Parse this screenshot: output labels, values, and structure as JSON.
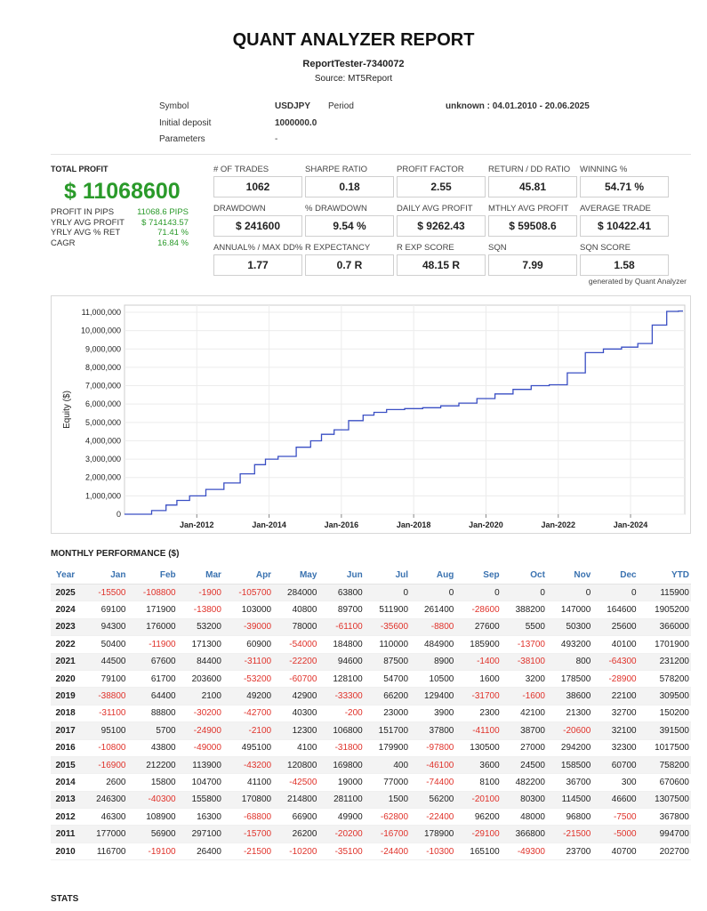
{
  "header": {
    "title": "QUANT ANALYZER REPORT",
    "subtitle": "ReportTester-7340072",
    "source": "Source: MT5Report"
  },
  "info": {
    "symbol_label": "Symbol",
    "symbol_value": "USDJPY",
    "period_label": "Period",
    "period_value": "unknown : 04.01.2010 - 20.06.2025",
    "deposit_label": "Initial deposit",
    "deposit_value": "1000000.0",
    "params_label": "Parameters",
    "params_value": "-"
  },
  "total_profit": {
    "label": "TOTAL PROFIT",
    "value": "$ 11068600",
    "stats": [
      {
        "label": "PROFIT IN PIPS",
        "value": "11068.6 PIPS"
      },
      {
        "label": "YRLY AVG PROFIT",
        "value": "$ 714143.57"
      },
      {
        "label": "YRLY AVG % RET",
        "value": "71.41 %"
      },
      {
        "label": "CAGR",
        "value": "16.84 %"
      }
    ]
  },
  "metrics": [
    {
      "label": "# OF TRADES",
      "value": "1062"
    },
    {
      "label": "SHARPE RATIO",
      "value": "0.18"
    },
    {
      "label": "PROFIT FACTOR",
      "value": "2.55"
    },
    {
      "label": "RETURN / DD RATIO",
      "value": "45.81"
    },
    {
      "label": "WINNING %",
      "value": "54.71 %"
    },
    {
      "label": "DRAWDOWN",
      "value": "$ 241600"
    },
    {
      "label": "% DRAWDOWN",
      "value": "9.54 %"
    },
    {
      "label": "DAILY AVG PROFIT",
      "value": "$ 9262.43"
    },
    {
      "label": "MTHLY AVG PROFIT",
      "value": "$ 59508.6"
    },
    {
      "label": "AVERAGE TRADE",
      "value": "$ 10422.41"
    },
    {
      "label": "ANNUAL% / MAX DD%",
      "value": "1.77"
    },
    {
      "label": "R EXPECTANCY",
      "value": "0.7 R"
    },
    {
      "label": "R EXP SCORE",
      "value": "48.15 R"
    },
    {
      "label": "SQN",
      "value": "7.99"
    },
    {
      "label": "SQN SCORE",
      "value": "1.58"
    }
  ],
  "generated": "generated by Quant Analyzer",
  "chart_data": {
    "type": "line",
    "title": "",
    "xlabel": "",
    "ylabel": "Equity ($)",
    "x_ticks": [
      "Jan-2012",
      "Jan-2014",
      "Jan-2016",
      "Jan-2018",
      "Jan-2020",
      "Jan-2022",
      "Jan-2024"
    ],
    "y_ticks": [
      "0",
      "1,000,000",
      "2,000,000",
      "3,000,000",
      "4,000,000",
      "5,000,000",
      "6,000,000",
      "7,000,000",
      "8,000,000",
      "9,000,000",
      "10,000,000",
      "11,000,000"
    ],
    "ylim": [
      0,
      11000000
    ],
    "xlim": [
      2010.0,
      2025.5
    ],
    "grid": true,
    "series": [
      {
        "x": [
          2010.0,
          2010.5,
          2011.0,
          2011.3,
          2011.6,
          2012.0,
          2012.5,
          2013.0,
          2013.4,
          2013.8,
          2014.0,
          2014.5,
          2015.0,
          2015.3,
          2015.6,
          2016.0,
          2016.4,
          2016.8,
          2017.0,
          2017.5,
          2018.0,
          2018.5,
          2019.0,
          2019.5,
          2020.0,
          2020.5,
          2021.0,
          2021.5,
          2022.0,
          2022.5,
          2023.0,
          2023.5,
          2024.0,
          2024.4,
          2024.8,
          2025.2,
          2025.45
        ],
        "y": [
          0,
          0,
          200000,
          500000,
          750000,
          1000000,
          1350000,
          1700000,
          2200000,
          2700000,
          3000000,
          3150000,
          3650000,
          4000000,
          4350000,
          4600000,
          5100000,
          5400000,
          5550000,
          5700000,
          5750000,
          5800000,
          5900000,
          6050000,
          6300000,
          6550000,
          6800000,
          7000000,
          7050000,
          7700000,
          8800000,
          9000000,
          9100000,
          9300000,
          10300000,
          11050000,
          11068600
        ]
      }
    ]
  },
  "monthly": {
    "title": "MONTHLY PERFORMANCE ($)",
    "columns": [
      "Year",
      "Jan",
      "Feb",
      "Mar",
      "Apr",
      "May",
      "Jun",
      "Jul",
      "Aug",
      "Sep",
      "Oct",
      "Nov",
      "Dec",
      "YTD"
    ],
    "rows": [
      [
        "2025",
        "-15500",
        "-108800",
        "-1900",
        "-105700",
        "284000",
        "63800",
        "0",
        "0",
        "0",
        "0",
        "0",
        "0",
        "115900"
      ],
      [
        "2024",
        "69100",
        "171900",
        "-13800",
        "103000",
        "40800",
        "89700",
        "511900",
        "261400",
        "-28600",
        "388200",
        "147000",
        "164600",
        "1905200"
      ],
      [
        "2023",
        "94300",
        "176000",
        "53200",
        "-39000",
        "78000",
        "-61100",
        "-35600",
        "-8800",
        "27600",
        "5500",
        "50300",
        "25600",
        "366000"
      ],
      [
        "2022",
        "50400",
        "-11900",
        "171300",
        "60900",
        "-54000",
        "184800",
        "110000",
        "484900",
        "185900",
        "-13700",
        "493200",
        "40100",
        "1701900"
      ],
      [
        "2021",
        "44500",
        "67600",
        "84400",
        "-31100",
        "-22200",
        "94600",
        "87500",
        "8900",
        "-1400",
        "-38100",
        "800",
        "-64300",
        "231200"
      ],
      [
        "2020",
        "79100",
        "61700",
        "203600",
        "-53200",
        "-60700",
        "128100",
        "54700",
        "10500",
        "1600",
        "3200",
        "178500",
        "-28900",
        "578200"
      ],
      [
        "2019",
        "-38800",
        "64400",
        "2100",
        "49200",
        "42900",
        "-33300",
        "66200",
        "129400",
        "-31700",
        "-1600",
        "38600",
        "22100",
        "309500"
      ],
      [
        "2018",
        "-31100",
        "88800",
        "-30200",
        "-42700",
        "40300",
        "-200",
        "23000",
        "3900",
        "2300",
        "42100",
        "21300",
        "32700",
        "150200"
      ],
      [
        "2017",
        "95100",
        "5700",
        "-24900",
        "-2100",
        "12300",
        "106800",
        "151700",
        "37800",
        "-41100",
        "38700",
        "-20600",
        "32100",
        "391500"
      ],
      [
        "2016",
        "-10800",
        "43800",
        "-49000",
        "495100",
        "4100",
        "-31800",
        "179900",
        "-97800",
        "130500",
        "27000",
        "294200",
        "32300",
        "1017500"
      ],
      [
        "2015",
        "-16900",
        "212200",
        "113900",
        "-43200",
        "120800",
        "169800",
        "400",
        "-46100",
        "3600",
        "24500",
        "158500",
        "60700",
        "758200"
      ],
      [
        "2014",
        "2600",
        "15800",
        "104700",
        "41100",
        "-42500",
        "19000",
        "77000",
        "-74400",
        "8100",
        "482200",
        "36700",
        "300",
        "670600"
      ],
      [
        "2013",
        "246300",
        "-40300",
        "155800",
        "170800",
        "214800",
        "281100",
        "1500",
        "56200",
        "-20100",
        "80300",
        "114500",
        "46600",
        "1307500"
      ],
      [
        "2012",
        "46300",
        "108900",
        "16300",
        "-68800",
        "66900",
        "49900",
        "-62800",
        "-22400",
        "96200",
        "48000",
        "96800",
        "-7500",
        "367800"
      ],
      [
        "2011",
        "177000",
        "56900",
        "297100",
        "-15700",
        "26200",
        "-20200",
        "-16700",
        "178900",
        "-29100",
        "366800",
        "-21500",
        "-5000",
        "994700"
      ],
      [
        "2010",
        "116700",
        "-19100",
        "26400",
        "-21500",
        "-10200",
        "-35100",
        "-24400",
        "-10300",
        "165100",
        "-49300",
        "23700",
        "40700",
        "202700"
      ]
    ]
  },
  "stats": {
    "title": "STATS"
  },
  "colors": {
    "profit": "#2a9a2a",
    "loss": "#e0322a",
    "line": "#3a4fc4",
    "header_text": "#3a72b0"
  }
}
